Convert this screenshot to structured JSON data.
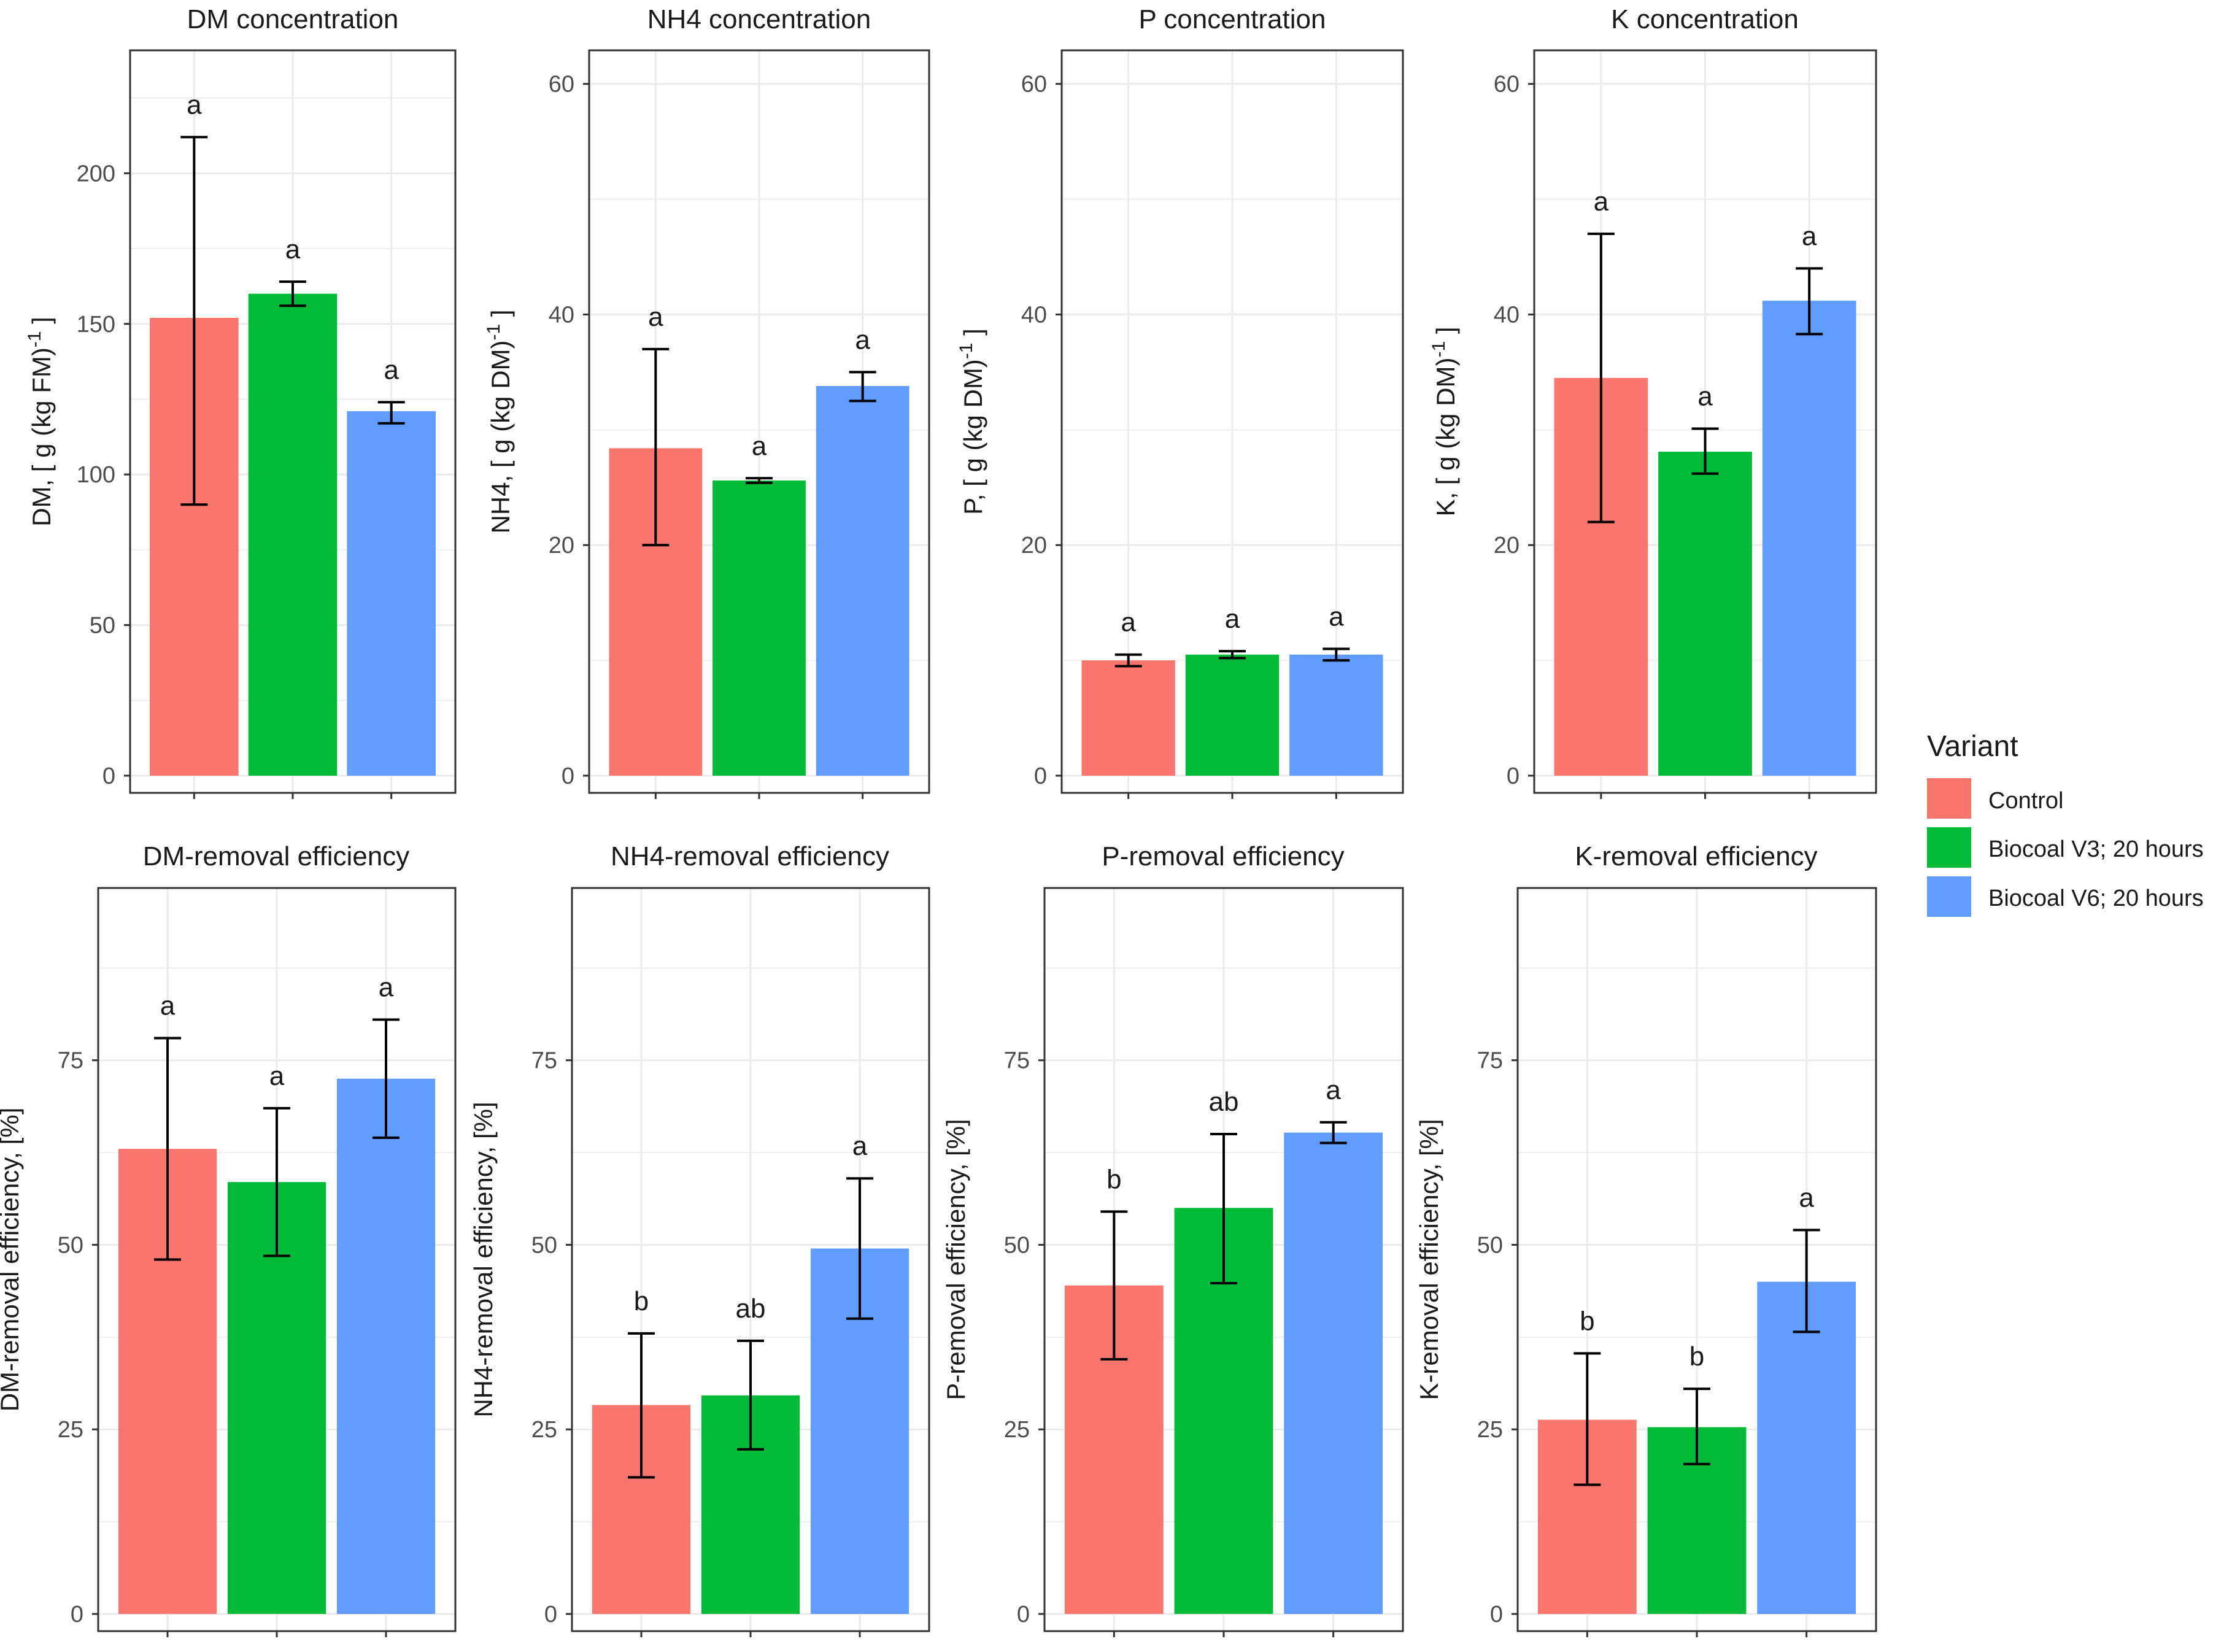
{
  "chart_data": [
    {
      "id": "dm",
      "type": "bar",
      "title": "DM concentration",
      "ylabel_prefix": "DM, [  g (kg FM)",
      "ylabel_sup": "-1",
      "ylabel_suffix": " ]",
      "categories": [
        "Control",
        "Biocoal V3; 20 hours",
        "Biocoal V6; 20 hours"
      ],
      "values": [
        152,
        160,
        121
      ],
      "err_low": [
        90,
        156,
        117
      ],
      "err_high": [
        212,
        164,
        124
      ],
      "letters": [
        "a",
        "a",
        "a"
      ],
      "ylim": [
        0,
        240
      ],
      "yticks": [
        0,
        50,
        100,
        150,
        200
      ]
    },
    {
      "id": "nh4",
      "type": "bar",
      "title": "NH4 concentration",
      "ylabel_prefix": "NH4, [  g (kg DM)",
      "ylabel_sup": "-1",
      "ylabel_suffix": " ]",
      "categories": [
        "Control",
        "Biocoal V3; 20 hours",
        "Biocoal V6; 20 hours"
      ],
      "values": [
        28.4,
        25.6,
        33.8
      ],
      "err_low": [
        20,
        25.4,
        32.5
      ],
      "err_high": [
        37,
        25.8,
        35
      ],
      "letters": [
        "a",
        "a",
        "a"
      ],
      "ylim": [
        0,
        62.7
      ],
      "yticks": [
        0,
        20,
        40,
        60
      ]
    },
    {
      "id": "p",
      "type": "bar",
      "title": "P concentration",
      "ylabel_prefix": "P, [  g (kg DM)",
      "ylabel_sup": "-1",
      "ylabel_suffix": " ]",
      "categories": [
        "Control",
        "Biocoal V3; 20 hours",
        "Biocoal V6; 20 hours"
      ],
      "values": [
        10,
        10.5,
        10.5
      ],
      "err_low": [
        9.5,
        10.2,
        10
      ],
      "err_high": [
        10.5,
        10.8,
        11
      ],
      "letters": [
        "a",
        "a",
        "a"
      ],
      "ylim": [
        0,
        62.7
      ],
      "yticks": [
        0,
        20,
        40,
        60
      ]
    },
    {
      "id": "k",
      "type": "bar",
      "title": "K concentration",
      "ylabel_prefix": "K, [  g (kg DM)",
      "ylabel_sup": "-1",
      "ylabel_suffix": " ]",
      "categories": [
        "Control",
        "Biocoal V3; 20 hours",
        "Biocoal V6; 20 hours"
      ],
      "values": [
        34.5,
        28.1,
        41.2
      ],
      "err_low": [
        22,
        26.2,
        38.3
      ],
      "err_high": [
        47,
        30.1,
        44
      ],
      "letters": [
        "a",
        "a",
        "a"
      ],
      "ylim": [
        0,
        62.7
      ],
      "yticks": [
        0,
        20,
        40,
        60
      ]
    },
    {
      "id": "dmr",
      "type": "bar",
      "title": "DM-removal efficiency",
      "ylabel_prefix": "DM-removal efficiency, [%]",
      "ylabel_sup": "",
      "ylabel_suffix": "",
      "categories": [
        "Control",
        "Biocoal V3; 20 hours",
        "Biocoal V6; 20 hours"
      ],
      "values": [
        63,
        58.5,
        72.5
      ],
      "err_low": [
        48,
        48.5,
        64.5
      ],
      "err_high": [
        78,
        68.5,
        80.5
      ],
      "letters": [
        "a",
        "a",
        "a"
      ],
      "ylim": [
        0,
        98
      ],
      "yticks": [
        0,
        25,
        50,
        75
      ]
    },
    {
      "id": "nh4r",
      "type": "bar",
      "title": "NH4-removal efficiency",
      "ylabel_prefix": "NH4-removal efficiency, [%]",
      "ylabel_sup": "",
      "ylabel_suffix": "",
      "categories": [
        "Control",
        "Biocoal V3; 20 hours",
        "Biocoal V6; 20 hours"
      ],
      "values": [
        28.3,
        29.6,
        49.5
      ],
      "err_low": [
        18.5,
        22.3,
        40
      ],
      "err_high": [
        38,
        37,
        59
      ],
      "letters": [
        "b",
        "ab",
        "a"
      ],
      "ylim": [
        0,
        98
      ],
      "yticks": [
        0,
        25,
        50,
        75
      ]
    },
    {
      "id": "pr",
      "type": "bar",
      "title": "P-removal efficiency",
      "ylabel_prefix": "P-removal efficiency, [%]",
      "ylabel_sup": "",
      "ylabel_suffix": "",
      "categories": [
        "Control",
        "Biocoal V3; 20 hours",
        "Biocoal V6; 20 hours"
      ],
      "values": [
        44.5,
        55,
        65.2
      ],
      "err_low": [
        34.5,
        44.8,
        63.8
      ],
      "err_high": [
        54.5,
        65,
        66.6
      ],
      "letters": [
        "b",
        "ab",
        "a"
      ],
      "ylim": [
        0,
        98
      ],
      "yticks": [
        0,
        25,
        50,
        75
      ]
    },
    {
      "id": "kr",
      "type": "bar",
      "title": "K-removal efficiency",
      "ylabel_prefix": "K-removal efficiency, [%]",
      "ylabel_sup": "",
      "ylabel_suffix": "",
      "categories": [
        "Control",
        "Biocoal V3; 20 hours",
        "Biocoal V6; 20 hours"
      ],
      "values": [
        26.3,
        25.3,
        45
      ],
      "err_low": [
        17.5,
        20.3,
        38.2
      ],
      "err_high": [
        35.3,
        30.5,
        52
      ],
      "letters": [
        "b",
        "b",
        "a"
      ],
      "ylim": [
        0,
        98
      ],
      "yticks": [
        0,
        25,
        50,
        75
      ]
    }
  ],
  "legend": {
    "title": "Variant",
    "items": [
      {
        "label": "Control",
        "color": "#F8766D"
      },
      {
        "label": "Biocoal V3; 20 hours",
        "color": "#00BA38"
      },
      {
        "label": "Biocoal V6; 20 hours",
        "color": "#619CFF"
      }
    ]
  },
  "style": {
    "bar_colors": [
      "#F8766D",
      "#00BA38",
      "#619CFF"
    ],
    "grid_color": "#ebebeb",
    "panel_border": "#333333"
  }
}
